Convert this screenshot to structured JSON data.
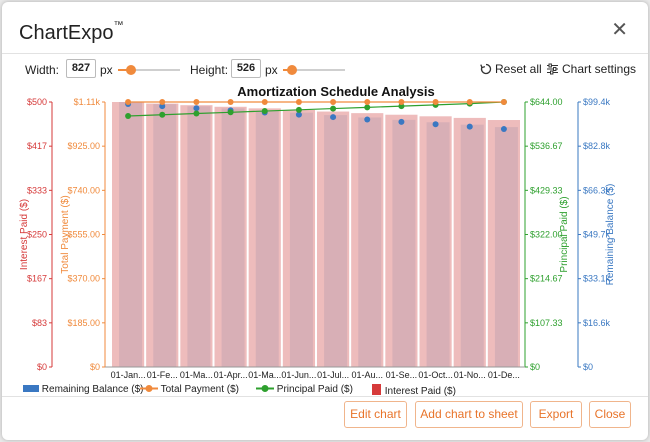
{
  "app": {
    "title": "ChartExpo",
    "tm": "™"
  },
  "toolbar": {
    "width_label": "Width:",
    "width_value": "827",
    "width_unit": "px",
    "height_label": "Height:",
    "height_value": "526",
    "height_unit": "px",
    "reset_label": "Reset all",
    "settings_label": "Chart settings"
  },
  "footer": {
    "edit_label": "Edit chart",
    "add_label": "Add chart to sheet",
    "export_label": "Export",
    "close_label": "Close"
  },
  "colors": {
    "interest": "#d63a3a",
    "total": "#f08a3c",
    "principal": "#2ea02e",
    "balance": "#3a78c2",
    "interest_bar": "#e8a6a6",
    "balance_bar": "#a8cbe6"
  },
  "chart_data": {
    "type": "bar",
    "title": "Amortization Schedule Analysis",
    "categories": [
      "01-Jan...",
      "01-Fe...",
      "01-Ma...",
      "01-Apr...",
      "01-Ma...",
      "01-Jun...",
      "01-Jul...",
      "01-Au...",
      "01-Se...",
      "01-Oct...",
      "01-No...",
      "01-De..."
    ],
    "axes": {
      "interest": {
        "label": "Interest Paid ($)",
        "ticks": [
          "$0",
          "$83",
          "$167",
          "$250",
          "$333",
          "$417",
          "$500"
        ],
        "range": [
          0,
          500
        ]
      },
      "total": {
        "label": "Total Payment ($)",
        "ticks": [
          "$0",
          "$185.00",
          "$370.00",
          "$555.00",
          "$740.00",
          "$925.00",
          "$1.11k"
        ],
        "range": [
          0,
          1110
        ]
      },
      "principal": {
        "label": "Principal Paid ($)",
        "ticks": [
          "$0",
          "$107.33",
          "$214.67",
          "$322.00",
          "$429.33",
          "$536.67",
          "$644.00"
        ],
        "range": [
          0,
          644
        ]
      },
      "balance": {
        "label": "Remaining Balance ($)",
        "ticks": [
          "$0",
          "$16.6k",
          "$33.1k",
          "$49.7k",
          "$66.3k",
          "$82.8k",
          "$99.4k"
        ],
        "range": [
          0,
          99400
        ]
      }
    },
    "series": [
      {
        "name": "Remaining Balance ($)",
        "kind": "bar",
        "axis": "balance",
        "values": [
          99400,
          98600,
          97800,
          97000,
          96200,
          95400,
          94500,
          93600,
          92700,
          91800,
          90900,
          90000
        ]
      },
      {
        "name": "Total Payment ($)",
        "kind": "line",
        "axis": "total",
        "values": [
          1110,
          1110,
          1110,
          1110,
          1110,
          1110,
          1110,
          1110,
          1110,
          1110,
          1110,
          1110
        ]
      },
      {
        "name": "Principal Paid ($)",
        "kind": "line",
        "axis": "principal",
        "values": [
          610,
          613,
          616,
          619,
          622,
          625,
          628,
          631,
          634,
          637,
          640,
          644
        ]
      },
      {
        "name": "Interest Paid ($)",
        "kind": "bar",
        "axis": "interest",
        "values": [
          500,
          497,
          494,
          491,
          488,
          485,
          482,
          479,
          476,
          473,
          470,
          466
        ]
      }
    ],
    "grid": false,
    "legend": "bottom-left"
  }
}
